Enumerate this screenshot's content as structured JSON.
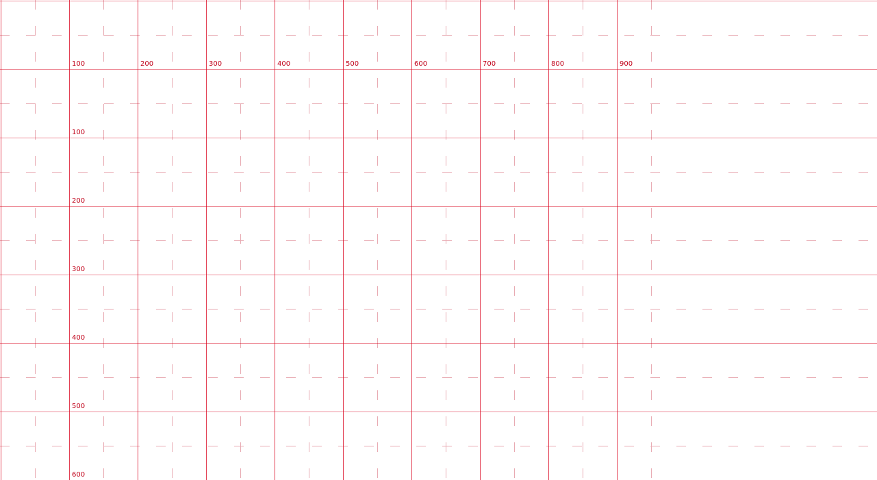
{
  "grid": {
    "line_color": "#d9001b",
    "major_line_opacity": 0.7,
    "minor_line_color": "#e8aab2",
    "label_color": "#c00018",
    "top_labels": [
      "100",
      "200",
      "300",
      "400",
      "500",
      "600",
      "700",
      "800",
      "900"
    ],
    "side_labels": [
      "100",
      "200",
      "300",
      "400",
      "500",
      "600"
    ]
  }
}
